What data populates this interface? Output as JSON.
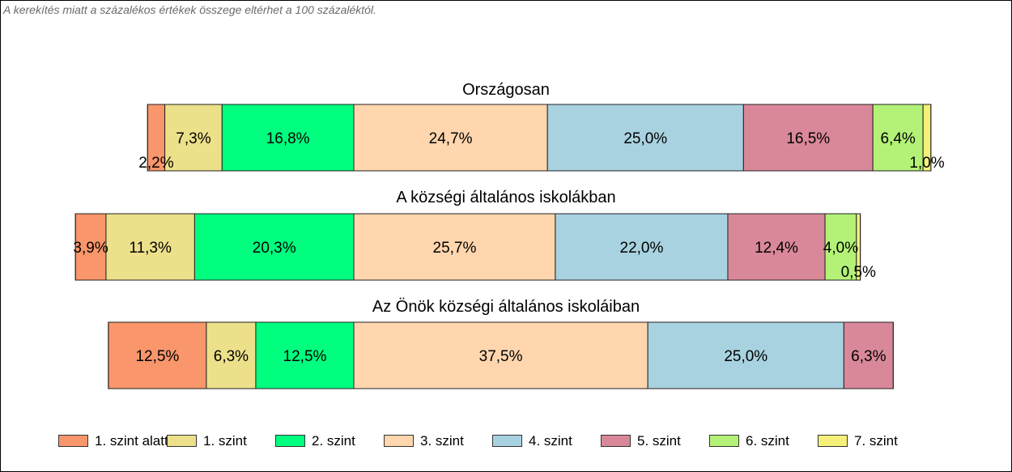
{
  "note": "A kerekítés miatt a százalékos értékek összege eltérhet a 100 százaléktól.",
  "chart_data": {
    "type": "bar",
    "orientation": "horizontal-stacked",
    "series": [
      {
        "name": "1. szint alatti",
        "color": "#f9966b"
      },
      {
        "name": "1. szint",
        "color": "#ece08a"
      },
      {
        "name": "2. szint",
        "color": "#00ff7f"
      },
      {
        "name": "3. szint",
        "color": "#ffd6ae"
      },
      {
        "name": "4. szint",
        "color": "#a8d2e0"
      },
      {
        "name": "5. szint",
        "color": "#d98899"
      },
      {
        "name": "6. szint",
        "color": "#b3f277"
      },
      {
        "name": "7. szint",
        "color": "#f4f07a"
      }
    ],
    "bars": [
      {
        "title": "Országosan",
        "values": [
          2.2,
          7.3,
          16.8,
          24.7,
          25.0,
          16.5,
          6.4,
          1.0
        ],
        "labels": [
          "2,2%",
          "7,3%",
          "16,8%",
          "24,7%",
          "25,0%",
          "16,5%",
          "6,4%",
          "1,0%"
        ]
      },
      {
        "title": "A községi általános iskolákban",
        "values": [
          3.9,
          11.3,
          20.3,
          25.7,
          22.0,
          12.4,
          4.0,
          0.5
        ],
        "labels": [
          "3,9%",
          "11,3%",
          "20,3%",
          "25,7%",
          "22,0%",
          "12,4%",
          "4,0%",
          "0,5%"
        ]
      },
      {
        "title": "Az Önök községi általános iskoláiban",
        "values": [
          12.5,
          6.3,
          12.5,
          37.5,
          25.0,
          6.3
        ],
        "labels": [
          "12,5%",
          "6,3%",
          "12,5%",
          "37,5%",
          "25,0%",
          "6,3%"
        ]
      }
    ],
    "legend_position": "bottom",
    "grid": false
  }
}
